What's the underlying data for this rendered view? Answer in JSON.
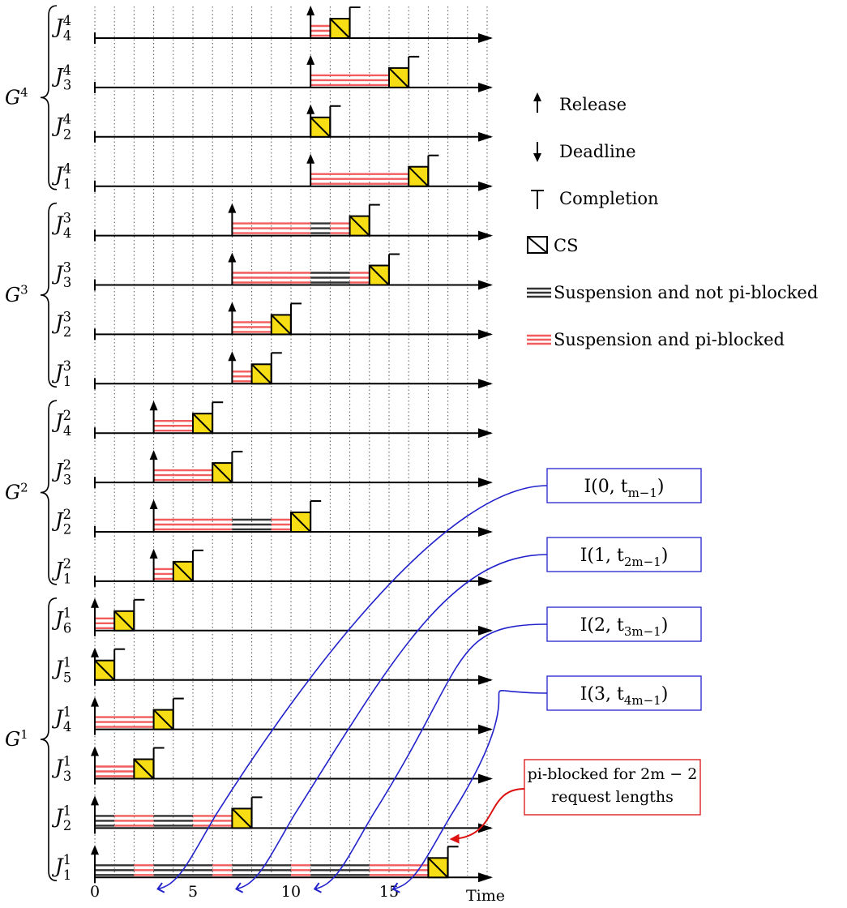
{
  "chart_data": {
    "type": "gantt",
    "xlabel": "Time",
    "xticks": [
      0,
      5,
      10,
      15
    ],
    "xlim": [
      0,
      20
    ],
    "groups": [
      {
        "name": "G^4",
        "base": "G",
        "sup": "4",
        "jobs": [
          {
            "base": "J",
            "sub": "4",
            "sup": "4",
            "release": 11,
            "completion": 13,
            "segments": [
              {
                "from": 11,
                "to": 12,
                "kind": "pi-blocked"
              },
              {
                "from": 12,
                "to": 13,
                "kind": "cs"
              }
            ]
          },
          {
            "base": "J",
            "sub": "3",
            "sup": "4",
            "release": 11,
            "completion": 16,
            "segments": [
              {
                "from": 11,
                "to": 15,
                "kind": "pi-blocked"
              },
              {
                "from": 15,
                "to": 16,
                "kind": "cs"
              }
            ]
          },
          {
            "base": "J",
            "sub": "2",
            "sup": "4",
            "release": 11,
            "completion": 12,
            "segments": [
              {
                "from": 11,
                "to": 12,
                "kind": "cs"
              }
            ]
          },
          {
            "base": "J",
            "sub": "1",
            "sup": "4",
            "release": 11,
            "completion": 17,
            "segments": [
              {
                "from": 11,
                "to": 16,
                "kind": "pi-blocked"
              },
              {
                "from": 16,
                "to": 17,
                "kind": "cs"
              }
            ]
          }
        ]
      },
      {
        "name": "G^3",
        "base": "G",
        "sup": "3",
        "jobs": [
          {
            "base": "J",
            "sub": "4",
            "sup": "3",
            "release": 7,
            "completion": 14,
            "segments": [
              {
                "from": 7,
                "to": 11,
                "kind": "pi-blocked"
              },
              {
                "from": 11,
                "to": 12,
                "kind": "not-pi-blocked"
              },
              {
                "from": 12,
                "to": 13,
                "kind": "pi-blocked"
              },
              {
                "from": 13,
                "to": 14,
                "kind": "cs"
              }
            ]
          },
          {
            "base": "J",
            "sub": "3",
            "sup": "3",
            "release": 7,
            "completion": 15,
            "segments": [
              {
                "from": 7,
                "to": 11,
                "kind": "pi-blocked"
              },
              {
                "from": 11,
                "to": 13,
                "kind": "not-pi-blocked"
              },
              {
                "from": 13,
                "to": 14,
                "kind": "pi-blocked"
              },
              {
                "from": 14,
                "to": 15,
                "kind": "cs"
              }
            ]
          },
          {
            "base": "J",
            "sub": "2",
            "sup": "3",
            "release": 7,
            "completion": 10,
            "segments": [
              {
                "from": 7,
                "to": 9,
                "kind": "pi-blocked"
              },
              {
                "from": 9,
                "to": 10,
                "kind": "cs"
              }
            ]
          },
          {
            "base": "J",
            "sub": "1",
            "sup": "3",
            "release": 7,
            "completion": 9,
            "segments": [
              {
                "from": 7,
                "to": 8,
                "kind": "pi-blocked"
              },
              {
                "from": 8,
                "to": 9,
                "kind": "cs"
              }
            ]
          }
        ]
      },
      {
        "name": "G^2",
        "base": "G",
        "sup": "2",
        "jobs": [
          {
            "base": "J",
            "sub": "4",
            "sup": "2",
            "release": 3,
            "completion": 6,
            "segments": [
              {
                "from": 3,
                "to": 5,
                "kind": "pi-blocked"
              },
              {
                "from": 5,
                "to": 6,
                "kind": "cs"
              }
            ]
          },
          {
            "base": "J",
            "sub": "3",
            "sup": "2",
            "release": 3,
            "completion": 7,
            "segments": [
              {
                "from": 3,
                "to": 6,
                "kind": "pi-blocked"
              },
              {
                "from": 6,
                "to": 7,
                "kind": "cs"
              }
            ]
          },
          {
            "base": "J",
            "sub": "2",
            "sup": "2",
            "release": 3,
            "completion": 11,
            "segments": [
              {
                "from": 3,
                "to": 7,
                "kind": "pi-blocked"
              },
              {
                "from": 7,
                "to": 9,
                "kind": "not-pi-blocked"
              },
              {
                "from": 9,
                "to": 10,
                "kind": "pi-blocked"
              },
              {
                "from": 10,
                "to": 11,
                "kind": "cs"
              }
            ]
          },
          {
            "base": "J",
            "sub": "1",
            "sup": "2",
            "release": 3,
            "completion": 5,
            "segments": [
              {
                "from": 3,
                "to": 4,
                "kind": "pi-blocked"
              },
              {
                "from": 4,
                "to": 5,
                "kind": "cs"
              }
            ]
          }
        ]
      },
      {
        "name": "G^1",
        "base": "G",
        "sup": "1",
        "jobs": [
          {
            "base": "J",
            "sub": "6",
            "sup": "1",
            "release": 0,
            "completion": 2,
            "segments": [
              {
                "from": 0,
                "to": 1,
                "kind": "pi-blocked"
              },
              {
                "from": 1,
                "to": 2,
                "kind": "cs"
              }
            ]
          },
          {
            "base": "J",
            "sub": "5",
            "sup": "1",
            "release": 0,
            "completion": 1,
            "segments": [
              {
                "from": 0,
                "to": 1,
                "kind": "cs"
              }
            ]
          },
          {
            "base": "J",
            "sub": "4",
            "sup": "1",
            "release": 0,
            "completion": 4,
            "segments": [
              {
                "from": 0,
                "to": 3,
                "kind": "pi-blocked"
              },
              {
                "from": 3,
                "to": 4,
                "kind": "cs"
              }
            ]
          },
          {
            "base": "J",
            "sub": "3",
            "sup": "1",
            "release": 0,
            "completion": 3,
            "segments": [
              {
                "from": 0,
                "to": 2,
                "kind": "pi-blocked"
              },
              {
                "from": 2,
                "to": 3,
                "kind": "cs"
              }
            ]
          },
          {
            "base": "J",
            "sub": "2",
            "sup": "1",
            "release": 0,
            "completion": 8,
            "segments": [
              {
                "from": 0,
                "to": 1,
                "kind": "not-pi-blocked"
              },
              {
                "from": 1,
                "to": 3,
                "kind": "pi-blocked"
              },
              {
                "from": 3,
                "to": 5,
                "kind": "not-pi-blocked"
              },
              {
                "from": 5,
                "to": 7,
                "kind": "pi-blocked"
              },
              {
                "from": 7,
                "to": 8,
                "kind": "cs"
              }
            ]
          },
          {
            "base": "J",
            "sub": "1",
            "sup": "1",
            "release": 0,
            "completion": 18,
            "segments": [
              {
                "from": 0,
                "to": 2,
                "kind": "not-pi-blocked"
              },
              {
                "from": 2,
                "to": 3,
                "kind": "pi-blocked"
              },
              {
                "from": 3,
                "to": 6,
                "kind": "not-pi-blocked"
              },
              {
                "from": 6,
                "to": 7,
                "kind": "pi-blocked"
              },
              {
                "from": 7,
                "to": 10,
                "kind": "not-pi-blocked"
              },
              {
                "from": 10,
                "to": 11,
                "kind": "pi-blocked"
              },
              {
                "from": 11,
                "to": 14,
                "kind": "not-pi-blocked"
              },
              {
                "from": 14,
                "to": 17,
                "kind": "pi-blocked"
              },
              {
                "from": 17,
                "to": 18,
                "kind": "cs"
              }
            ]
          }
        ]
      }
    ],
    "annotations": [
      {
        "label": "I(0, t",
        "sub": "m−1",
        "close": ")",
        "target_time": 3
      },
      {
        "label": "I(1, t",
        "sub": "2m−1",
        "close": ")",
        "target_time": 7
      },
      {
        "label": "I(2, t",
        "sub": "3m−1",
        "close": ")",
        "target_time": 11
      },
      {
        "label": "I(3, t",
        "sub": "4m−1",
        "close": ")",
        "target_time": 15
      }
    ],
    "note": {
      "lines": [
        "pi-blocked for 2m − 2",
        "request lengths"
      ],
      "target_time": 18
    },
    "legend": {
      "items": [
        {
          "key": "release",
          "label": "Release"
        },
        {
          "key": "deadline",
          "label": "Deadline"
        },
        {
          "key": "completion",
          "label": "Completion"
        },
        {
          "key": "cs",
          "label": "CS"
        },
        {
          "key": "not-pi-blocked",
          "label": "Suspension and not pi-blocked"
        },
        {
          "key": "pi-blocked",
          "label": "Suspension and pi-blocked"
        }
      ]
    },
    "colors": {
      "cs_fill": "#f6dd14",
      "pi_blocked": "#f25c5c",
      "not_pi_blocked": "#333333",
      "annotation": "#2222cc",
      "note": "#dd1111"
    }
  }
}
